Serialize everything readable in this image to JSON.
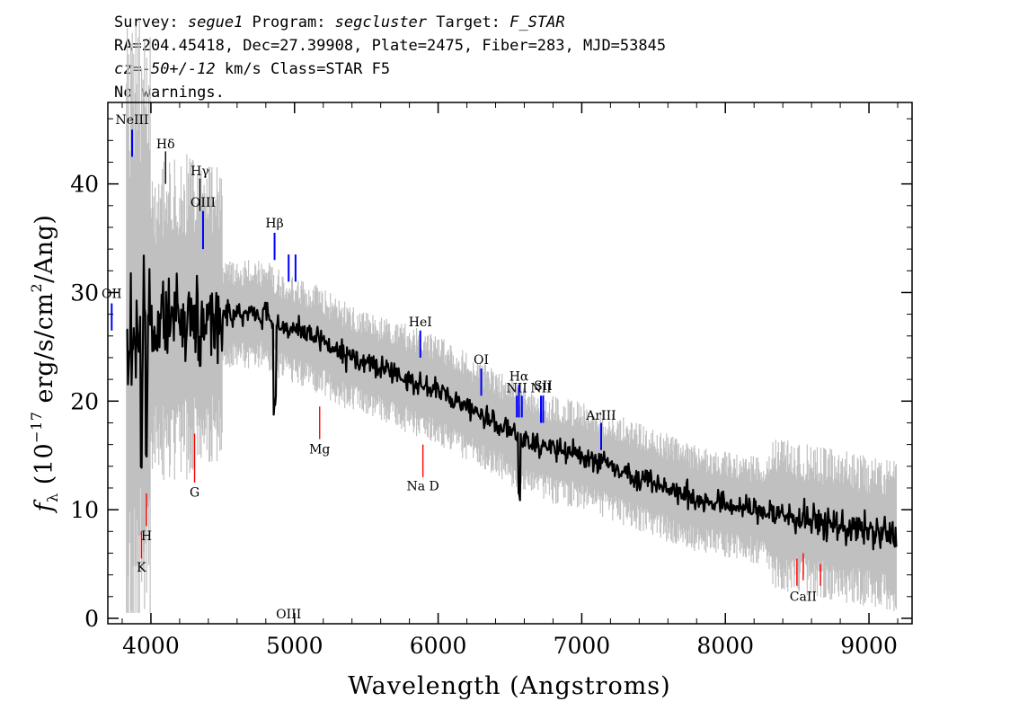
{
  "header": {
    "line1": {
      "survey_label": "Survey: ",
      "survey": "segue1",
      "program_label": " Program: ",
      "program": "segcluster",
      "target_label": " Target: ",
      "target": "F_STAR"
    },
    "line2": "RA=204.45418, Dec=27.39908, Plate=2475, Fiber=283, MJD=53845",
    "line3": {
      "cz_label": "cz=",
      "cz_value": "-50+/-12",
      "rest": " km/s Class=STAR F5"
    },
    "line4": "No warnings."
  },
  "chart_data": {
    "type": "line",
    "title": "",
    "xlabel": "Wavelength (Angstroms)",
    "ylabel": "f_λ (10^-17 erg/s/cm^2/Ang)",
    "xlim": [
      3700,
      9300
    ],
    "ylim": [
      -0.5,
      47.5
    ],
    "xticks": [
      4000,
      5000,
      6000,
      7000,
      8000,
      9000
    ],
    "yticks": [
      0,
      10,
      20,
      30,
      40
    ],
    "grid": false,
    "legend": "none",
    "colors": {
      "flux": "#000000",
      "error": "#c0c0c0",
      "emission": "#0000ff",
      "absorption": "#ff0000",
      "sky": "#000000"
    },
    "spectrum_anchors": {
      "x": [
        3800,
        3850,
        3900,
        3950,
        4000,
        4050,
        4100,
        4200,
        4300,
        4400,
        4500,
        4600,
        4700,
        4800,
        4900,
        5000,
        5100,
        5200,
        5300,
        5400,
        5500,
        5600,
        5700,
        5800,
        5900,
        6000,
        6200,
        6400,
        6600,
        6800,
        7000,
        7200,
        7400,
        7600,
        7800,
        8000,
        8200,
        8400,
        8600,
        8800,
        9000,
        9200
      ],
      "y": [
        23,
        25,
        27,
        27,
        27,
        27,
        27.5,
        27.5,
        28,
        28,
        28,
        28,
        28,
        28,
        27,
        26.5,
        26,
        25.5,
        24.5,
        24,
        23.5,
        23,
        22.5,
        22,
        21.5,
        21,
        19.5,
        18,
        16.5,
        15.5,
        15,
        14,
        13,
        12,
        11,
        10.5,
        10,
        9.5,
        9,
        8.5,
        8,
        7.5
      ]
    },
    "spectral_lines": [
      {
        "label": "OII",
        "x": 3727,
        "y1": 26.5,
        "y2": 29,
        "kind": "emission",
        "label_y": 29.5
      },
      {
        "label": "NeIII",
        "x": 3869,
        "y1": 42.5,
        "y2": 45,
        "kind": "emission",
        "label_y": 45.5
      },
      {
        "label": "Hδ",
        "x": 4102,
        "y1": 40,
        "y2": 43,
        "kind": "sky",
        "label_y": 43.3
      },
      {
        "label": "Hγ",
        "x": 4341,
        "y1": 37.5,
        "y2": 40.5,
        "kind": "sky",
        "label_y": 40.8
      },
      {
        "label": "OIII",
        "x": 4363,
        "y1": 34,
        "y2": 37.5,
        "kind": "emission",
        "label_y": 37.9
      },
      {
        "label": "Hβ",
        "x": 4861,
        "y1": 33,
        "y2": 35.5,
        "kind": "emission",
        "label_y": 36
      },
      {
        "label": "OIII",
        "x": 4959,
        "y1": 31,
        "y2": 33.5,
        "kind": "emission",
        "label_y": 0
      },
      {
        "label": "",
        "x": 5007,
        "y1": 31,
        "y2": 33.5,
        "kind": "emission",
        "label_y": 0
      },
      {
        "label": "HeI",
        "x": 5876,
        "y1": 24,
        "y2": 26.5,
        "kind": "emission",
        "label_y": 26.9
      },
      {
        "label": "OI",
        "x": 6300,
        "y1": 20.5,
        "y2": 23,
        "kind": "emission",
        "label_y": 23.4
      },
      {
        "label": "NII",
        "x": 6548,
        "y1": 18.5,
        "y2": 20.5,
        "kind": "emission",
        "label_y": 20.8
      },
      {
        "label": "Hα",
        "x": 6563,
        "y1": 18.5,
        "y2": 21.5,
        "kind": "emission",
        "label_y": 21.9
      },
      {
        "label": "",
        "x": 6583,
        "y1": 18.5,
        "y2": 20.5,
        "kind": "emission",
        "label_y": 0
      },
      {
        "label": "NII",
        "x": 6716,
        "y1": 18,
        "y2": 20.5,
        "kind": "emission",
        "label_y": 20.8
      },
      {
        "label": "SII",
        "x": 6731,
        "y1": 18,
        "y2": 20.5,
        "kind": "emission",
        "label_y": 21
      },
      {
        "label": "ArIII",
        "x": 7135,
        "y1": 15.5,
        "y2": 18,
        "kind": "emission",
        "label_y": 18.3
      },
      {
        "label": "K",
        "x": 3934,
        "y1": 5.5,
        "y2": 8,
        "kind": "absorption",
        "label_y": 4.3
      },
      {
        "label": "H",
        "x": 3969,
        "y1": 8.5,
        "y2": 11.5,
        "kind": "absorption",
        "label_y": 7.2
      },
      {
        "label": "G",
        "x": 4304,
        "y1": 12.5,
        "y2": 17,
        "kind": "absorption",
        "label_y": 11.2
      },
      {
        "label": "Mg",
        "x": 5175,
        "y1": 16.5,
        "y2": 19.5,
        "kind": "absorption",
        "label_y": 15.2
      },
      {
        "label": "Na D",
        "x": 5894,
        "y1": 13,
        "y2": 16,
        "kind": "absorption",
        "label_y": 11.8
      },
      {
        "label": "",
        "x": 8498,
        "y1": 3,
        "y2": 5.5,
        "kind": "absorption",
        "label_y": 0
      },
      {
        "label": "CaII",
        "x": 8542,
        "y1": 3.5,
        "y2": 6,
        "kind": "absorption",
        "label_y": 1.6
      },
      {
        "label": "",
        "x": 8662,
        "y1": 3,
        "y2": 5,
        "kind": "absorption",
        "label_y": 0
      }
    ]
  }
}
